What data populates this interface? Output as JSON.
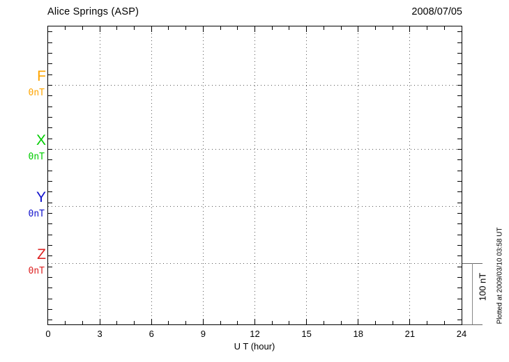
{
  "chart": {
    "title": "Alice Springs (ASP)",
    "date": "2008/07/05",
    "xlabel": "U T (hour)",
    "scale_bar_label": "100 nT",
    "plotted_at": "Plotted at 2009/03/10 03:58 UT"
  },
  "chart_data": {
    "type": "line",
    "title": "Alice Springs (ASP)",
    "subtitle_date": "2008/07/05",
    "xlabel": "U T (hour)",
    "xlim": [
      0,
      24
    ],
    "x_ticks": [
      0,
      3,
      6,
      9,
      12,
      15,
      18,
      21,
      24
    ],
    "grid": {
      "vertical_dotted_at_hours": [
        3,
        6,
        9,
        12,
        15,
        18,
        21
      ],
      "horizontal_dotted_at_series_baselines": true
    },
    "series": [
      {
        "name": "F",
        "baseline_label": "0nT",
        "color": "#FFA500",
        "values": []
      },
      {
        "name": "X",
        "baseline_label": "0nT",
        "color": "#00CC00",
        "values": []
      },
      {
        "name": "Y",
        "baseline_label": "0nT",
        "color": "#1111CC",
        "values": []
      },
      {
        "name": "Z",
        "baseline_label": "0nT",
        "color": "#DD2222",
        "values": []
      }
    ],
    "scale_bar": {
      "label": "100 nT",
      "value_nT": 100
    },
    "annotation": "Plotted at 2009/03/10 03:58 UT"
  }
}
